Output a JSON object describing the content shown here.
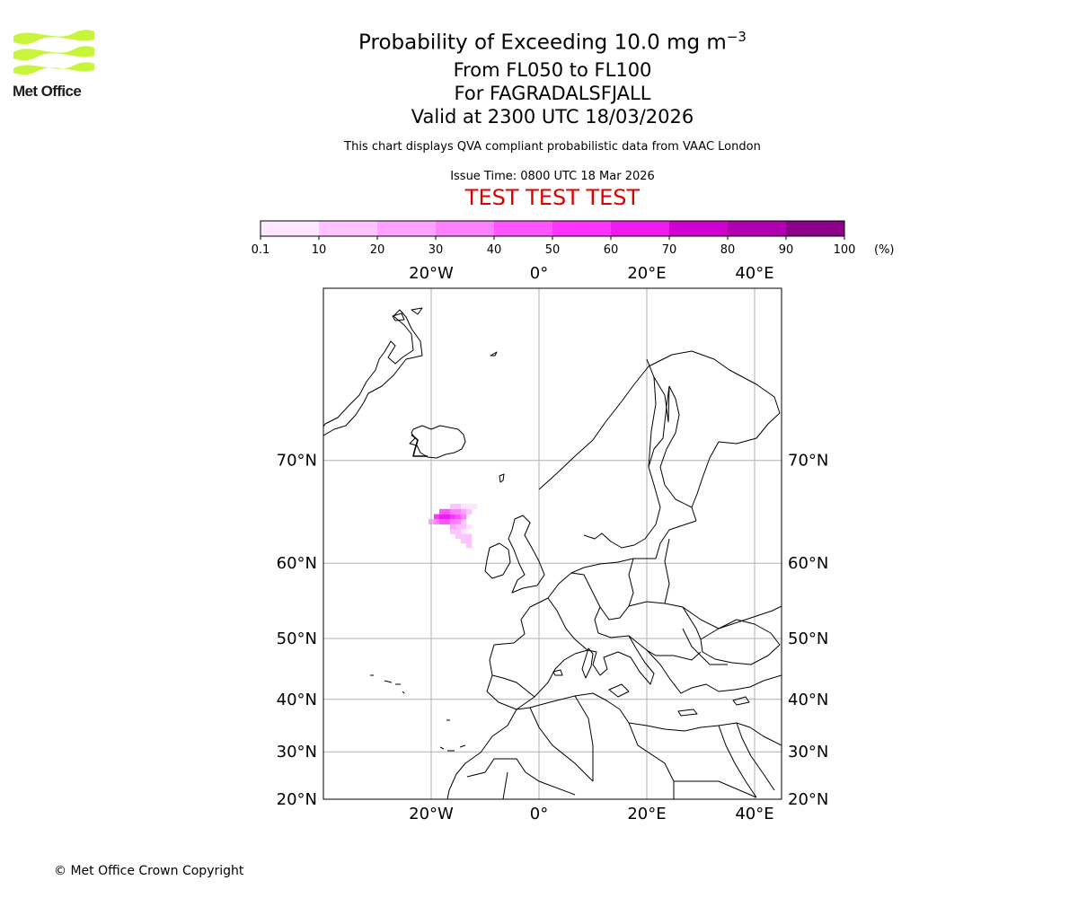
{
  "header": {
    "title_prefix": "Probability of Exceeding 10.0 mg m",
    "title_exponent": "−3",
    "flight_levels": "From FL050 to FL100",
    "volcano": "For FAGRADALSFJALL",
    "valid_time": "Valid at 2300 UTC 18/03/2026",
    "description": "This chart displays QVA compliant probabilistic data from VAAC London",
    "issue_time": "Issue Time: 0800 UTC 18 Mar 2026",
    "test_banner": "TEST TEST TEST"
  },
  "logo": {
    "name": "Met Office",
    "color": "#c8f53c"
  },
  "colorbar": {
    "ticks": [
      "0.1",
      "10",
      "20",
      "30",
      "40",
      "50",
      "60",
      "70",
      "80",
      "90",
      "100"
    ],
    "unit": "(%)",
    "colors": [
      "#ffe6ff",
      "#ffc4ff",
      "#ffa2ff",
      "#ff80ff",
      "#ff55ff",
      "#ff33ff",
      "#f01af0",
      "#d000d0",
      "#b000b0",
      "#8c008c",
      "#640064"
    ]
  },
  "map": {
    "lon_labels": [
      "20°W",
      "0°",
      "20°E",
      "40°E"
    ],
    "lon_values": [
      -20,
      0,
      20,
      40
    ],
    "lat_labels": [
      "70°N",
      "60°N",
      "50°N",
      "40°N",
      "30°N",
      "20°N"
    ],
    "lat_values": [
      70,
      60,
      50,
      40,
      30,
      20
    ],
    "lon_range": [
      -40,
      45
    ],
    "lat_range": [
      20,
      80
    ],
    "plume_cells": [
      {
        "lon": -19,
        "lat": 65.0,
        "prob": 55
      },
      {
        "lon": -18,
        "lat": 65.0,
        "prob": 65
      },
      {
        "lon": -17,
        "lat": 65.0,
        "prob": 60
      },
      {
        "lon": -16,
        "lat": 65.0,
        "prob": 55
      },
      {
        "lon": -15,
        "lat": 65.0,
        "prob": 45
      },
      {
        "lon": -14,
        "lat": 65.0,
        "prob": 30
      },
      {
        "lon": -18,
        "lat": 65.5,
        "prob": 45
      },
      {
        "lon": -17,
        "lat": 65.5,
        "prob": 40
      },
      {
        "lon": -16,
        "lat": 65.5,
        "prob": 35
      },
      {
        "lon": -15,
        "lat": 65.5,
        "prob": 30
      },
      {
        "lon": -14,
        "lat": 65.5,
        "prob": 20
      },
      {
        "lon": -13,
        "lat": 65.5,
        "prob": 10
      },
      {
        "lon": -16,
        "lat": 66.0,
        "prob": 15
      },
      {
        "lon": -15,
        "lat": 66.0,
        "prob": 10
      },
      {
        "lon": -14,
        "lat": 66.0,
        "prob": 8
      },
      {
        "lon": -13,
        "lat": 66.0,
        "prob": 5
      },
      {
        "lon": -12,
        "lat": 66.0,
        "prob": 5
      },
      {
        "lon": -19,
        "lat": 64.5,
        "prob": 35
      },
      {
        "lon": -18,
        "lat": 64.5,
        "prob": 45
      },
      {
        "lon": -17,
        "lat": 64.5,
        "prob": 40
      },
      {
        "lon": -16,
        "lat": 64.5,
        "prob": 35
      },
      {
        "lon": -15,
        "lat": 64.5,
        "prob": 30
      },
      {
        "lon": -14,
        "lat": 64.5,
        "prob": 15
      },
      {
        "lon": -20,
        "lat": 64.5,
        "prob": 20
      },
      {
        "lon": -16,
        "lat": 64.0,
        "prob": 25
      },
      {
        "lon": -15,
        "lat": 64.0,
        "prob": 15
      },
      {
        "lon": -14,
        "lat": 64.0,
        "prob": 10
      },
      {
        "lon": -13,
        "lat": 64.0,
        "prob": 5
      },
      {
        "lon": -16,
        "lat": 63.5,
        "prob": 15
      },
      {
        "lon": -15,
        "lat": 63.5,
        "prob": 15
      },
      {
        "lon": -14,
        "lat": 63.5,
        "prob": 8
      },
      {
        "lon": -15,
        "lat": 63.0,
        "prob": 12
      },
      {
        "lon": -14,
        "lat": 63.0,
        "prob": 10
      },
      {
        "lon": -13,
        "lat": 63.0,
        "prob": 10
      },
      {
        "lon": -14,
        "lat": 62.5,
        "prob": 12
      },
      {
        "lon": -13,
        "lat": 62.5,
        "prob": 15
      },
      {
        "lon": -13,
        "lat": 62.0,
        "prob": 18
      }
    ]
  },
  "footer": {
    "copyright": "© Met Office Crown Copyright"
  }
}
